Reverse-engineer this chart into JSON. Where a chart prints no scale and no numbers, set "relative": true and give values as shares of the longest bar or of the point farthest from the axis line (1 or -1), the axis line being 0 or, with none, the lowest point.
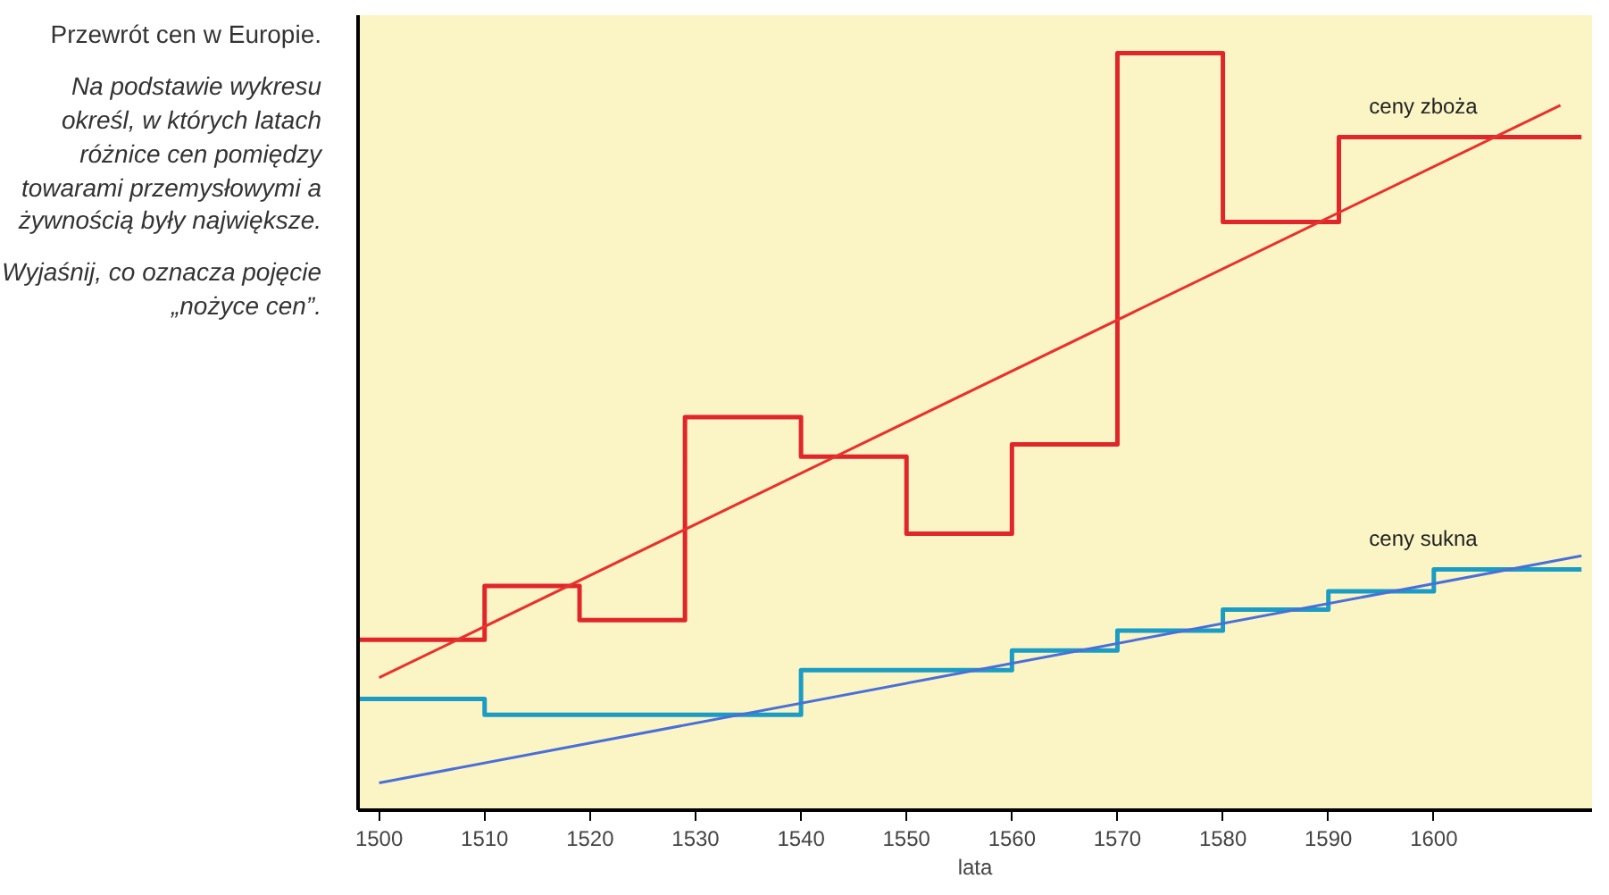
{
  "chart_data": {
    "type": "step",
    "title": "Przewrót cen w Europie.",
    "xlabel": "lata",
    "relative": true,
    "xlim": [
      1498,
      1615
    ],
    "xticks": [
      1500,
      1510,
      1520,
      1530,
      1540,
      1550,
      1560,
      1570,
      1580,
      1590,
      1600
    ],
    "grid": false,
    "annotations": [
      "Na podstawie wykresu określ, w których latach różnice cen pomiędzy towarami przemysłowymi a żywnością były największe.",
      "Wyjaśnij, co oznacza pojęcie „nożyce cen”."
    ],
    "series": [
      {
        "name": "ceny zboża",
        "color": "#e0262b",
        "x": [
          1498,
          1510,
          1519,
          1529,
          1540,
          1550,
          1560,
          1570,
          1580,
          1591,
          1614
        ],
        "values": [
          0.225,
          0.296,
          0.251,
          0.519,
          0.467,
          0.365,
          0.483,
          1.0,
          0.777,
          0.889,
          0.889
        ]
      },
      {
        "name": "ceny sukna",
        "color": "#1a9cc4",
        "x": [
          1498,
          1510,
          1540,
          1560,
          1570,
          1580,
          1590,
          1600,
          1614
        ],
        "values": [
          0.147,
          0.126,
          0.185,
          0.211,
          0.237,
          0.265,
          0.289,
          0.318,
          0.318
        ]
      },
      {
        "type": "line",
        "color": "#e8322d",
        "x": [
          1500,
          1612
        ],
        "values": [
          0.175,
          0.931
        ]
      },
      {
        "type": "line",
        "color": "#4a6fd8",
        "x": [
          1500,
          1614
        ],
        "values": [
          0.036,
          0.336
        ]
      }
    ]
  }
}
